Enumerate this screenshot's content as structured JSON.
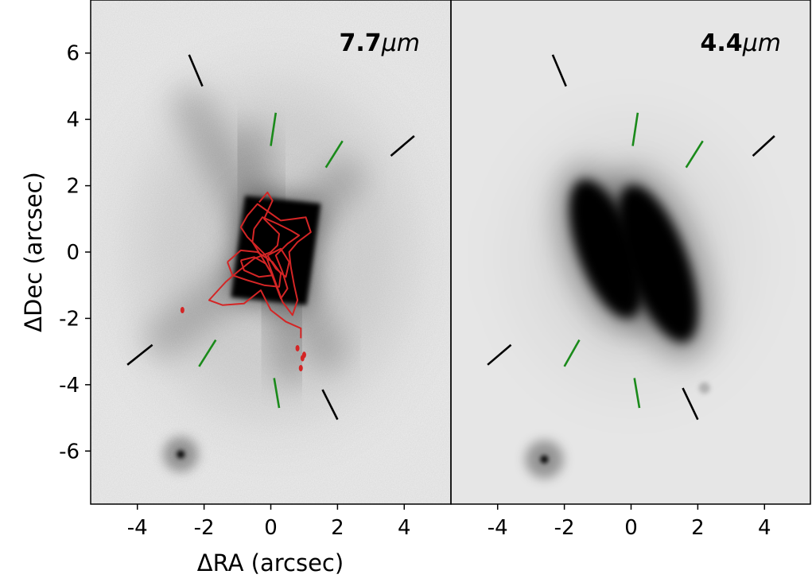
{
  "chart_data": {
    "type": "image",
    "xlabel": "ΔRA (arcsec)",
    "ylabel": "ΔDec (arcsec)",
    "xlim": [
      -5.4,
      5.4
    ],
    "ylim": [
      -7.6,
      7.6
    ],
    "xticks": [
      -4,
      -2,
      0,
      2,
      4
    ],
    "xtick_labels": [
      "-4",
      "-2",
      "0",
      "2",
      "4"
    ],
    "yticks": [
      6,
      4,
      2,
      0,
      -2,
      -4,
      -6
    ],
    "ytick_labels": [
      "6",
      "4",
      "2",
      "0",
      "-2",
      "-4",
      "-6"
    ],
    "colormap": "gray_r",
    "marker_colors": {
      "black": "#000000",
      "green": "#1a8a1a",
      "contour": "#d42525"
    },
    "panels": [
      {
        "label": "7.7μm",
        "label_main": "7.7",
        "label_unit": "μm",
        "background": "#eeeeee",
        "source": {
          "x": 0.05,
          "y": 0.0,
          "extent_x": [
            -1.2,
            1.5
          ],
          "extent_y": [
            -1.6,
            1.7
          ]
        },
        "point_source": {
          "x": -2.7,
          "y": -6.1
        },
        "black_markers": [
          {
            "x1": -2.45,
            "y1": 5.95,
            "x2": -2.05,
            "y2": 5.0
          },
          {
            "x1": 3.6,
            "y1": 2.9,
            "x2": 4.3,
            "y2": 3.5
          },
          {
            "x1": -4.3,
            "y1": -3.4,
            "x2": -3.55,
            "y2": -2.8
          },
          {
            "x1": 1.55,
            "y1": -4.15,
            "x2": 2.0,
            "y2": -5.05
          }
        ],
        "green_markers": [
          {
            "x1": 0.0,
            "y1": 3.2,
            "x2": 0.15,
            "y2": 4.2
          },
          {
            "x1": 1.65,
            "y1": 2.55,
            "x2": 2.15,
            "y2": 3.35
          },
          {
            "x1": -2.15,
            "y1": -3.45,
            "x2": -1.65,
            "y2": -2.65
          },
          {
            "x1": 0.1,
            "y1": -3.8,
            "x2": 0.25,
            "y2": -4.7
          }
        ],
        "contours": [
          [
            [
              -0.35,
              1.5
            ],
            [
              -0.1,
              1.8
            ],
            [
              0.05,
              1.55
            ],
            [
              -0.2,
              1.0
            ],
            [
              0.25,
              0.55
            ],
            [
              0.2,
              0.2
            ],
            [
              0.0,
              0.0
            ],
            [
              -0.5,
              -0.2
            ],
            [
              -1.0,
              -0.6
            ],
            [
              -1.35,
              -0.9
            ],
            [
              -1.85,
              -1.45
            ],
            [
              -1.45,
              -1.6
            ],
            [
              -0.8,
              -1.55
            ],
            [
              -0.3,
              -1.15
            ],
            [
              0.0,
              -1.75
            ],
            [
              0.45,
              -2.1
            ],
            [
              0.9,
              -2.3
            ],
            [
              0.9,
              -2.6
            ]
          ],
          [
            [
              -0.7,
              1.1
            ],
            [
              -0.4,
              1.45
            ],
            [
              0.3,
              0.95
            ],
            [
              0.7,
              1.0
            ],
            [
              1.05,
              1.05
            ],
            [
              1.2,
              0.6
            ],
            [
              0.8,
              0.3
            ],
            [
              0.55,
              0.0
            ],
            [
              0.6,
              -0.45
            ],
            [
              0.7,
              -1.0
            ],
            [
              0.8,
              -1.45
            ],
            [
              0.65,
              -1.9
            ],
            [
              0.35,
              -1.5
            ],
            [
              0.1,
              -0.8
            ],
            [
              -0.15,
              -0.1
            ],
            [
              -0.7,
              0.45
            ],
            [
              -0.9,
              0.75
            ],
            [
              -0.7,
              1.1
            ]
          ],
          [
            [
              -0.5,
              0.7
            ],
            [
              -0.25,
              1.05
            ],
            [
              0.2,
              0.85
            ],
            [
              0.6,
              0.65
            ],
            [
              0.85,
              0.5
            ],
            [
              0.5,
              0.25
            ],
            [
              0.15,
              -0.1
            ],
            [
              0.35,
              -0.6
            ],
            [
              0.5,
              -1.1
            ],
            [
              0.3,
              -1.4
            ],
            [
              0.0,
              -0.6
            ],
            [
              -0.3,
              -0.1
            ],
            [
              -0.55,
              0.3
            ],
            [
              -0.5,
              0.7
            ]
          ],
          [
            [
              -1.3,
              -0.3
            ],
            [
              -0.9,
              0.05
            ],
            [
              -0.4,
              0.0
            ],
            [
              0.05,
              -0.3
            ],
            [
              0.3,
              -0.65
            ],
            [
              0.25,
              -1.05
            ],
            [
              -0.2,
              -1.0
            ],
            [
              -0.7,
              -0.85
            ],
            [
              -1.15,
              -0.7
            ],
            [
              -1.3,
              -0.3
            ]
          ],
          [
            [
              -0.9,
              -0.25
            ],
            [
              -0.5,
              -0.15
            ],
            [
              -0.15,
              -0.35
            ],
            [
              0.05,
              -0.7
            ],
            [
              -0.35,
              -0.75
            ],
            [
              -0.8,
              -0.55
            ],
            [
              -0.9,
              -0.25
            ]
          ],
          [
            [
              -0.1,
              -0.1
            ],
            [
              0.3,
              0.1
            ],
            [
              0.55,
              -0.3
            ],
            [
              0.45,
              -0.75
            ],
            [
              0.15,
              -0.5
            ],
            [
              -0.1,
              -0.1
            ]
          ]
        ],
        "contour_dots": [
          {
            "x": -2.65,
            "y": -1.75
          },
          {
            "x": 0.8,
            "y": -2.9
          },
          {
            "x": 0.95,
            "y": -3.2
          },
          {
            "x": 0.9,
            "y": -3.5
          },
          {
            "x": 1.0,
            "y": -3.1
          }
        ]
      },
      {
        "label": "4.4μm",
        "label_main": "4.4",
        "label_unit": "μm",
        "background": "#e6e6e6",
        "lobes": [
          {
            "x": -0.75,
            "y": 0.1,
            "rx": 0.85,
            "ry": 2.2,
            "tilt": -20
          },
          {
            "x": 0.8,
            "y": -0.35,
            "rx": 0.9,
            "ry": 2.5,
            "tilt": -20
          }
        ],
        "point_source": {
          "x": -2.6,
          "y": -6.25
        },
        "faint_source": {
          "x": 2.2,
          "y": -4.1
        },
        "black_markers": [
          {
            "x1": -2.35,
            "y1": 5.95,
            "x2": -1.95,
            "y2": 5.0
          },
          {
            "x1": 3.65,
            "y1": 2.9,
            "x2": 4.3,
            "y2": 3.5
          },
          {
            "x1": -4.3,
            "y1": -3.4,
            "x2": -3.6,
            "y2": -2.8
          },
          {
            "x1": 1.55,
            "y1": -4.1,
            "x2": 2.0,
            "y2": -5.05
          }
        ],
        "green_markers": [
          {
            "x1": 0.05,
            "y1": 3.2,
            "x2": 0.2,
            "y2": 4.2
          },
          {
            "x1": 1.65,
            "y1": 2.55,
            "x2": 2.15,
            "y2": 3.35
          },
          {
            "x1": -2.0,
            "y1": -3.45,
            "x2": -1.55,
            "y2": -2.65
          },
          {
            "x1": 0.1,
            "y1": -3.8,
            "x2": 0.25,
            "y2": -4.7
          }
        ]
      }
    ]
  }
}
